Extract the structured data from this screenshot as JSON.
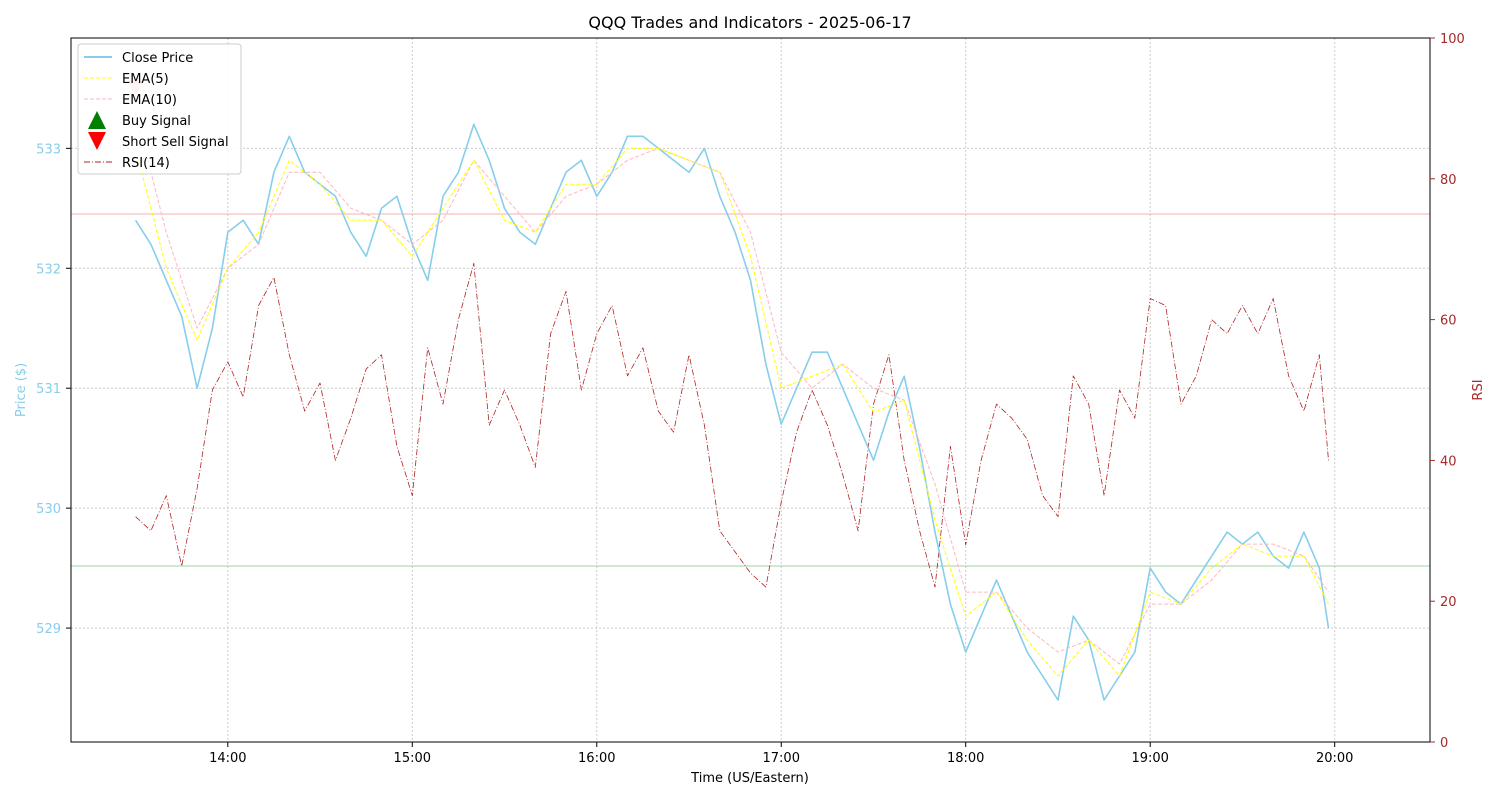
{
  "chart_data": {
    "type": "line",
    "title": "QQQ Trades and Indicators - 2025-06-17",
    "xlabel": "Time (US/Eastern)",
    "ylabel": "Price ($)",
    "y2label": "RSI",
    "x_tick_labels": [
      "14:00",
      "15:00",
      "16:00",
      "17:00",
      "18:00",
      "19:00",
      "20:00"
    ],
    "y_ticks": [
      529,
      530,
      531,
      532,
      533
    ],
    "y2_ticks": [
      0,
      20,
      40,
      60,
      80,
      100
    ],
    "xlim": [
      "13:09",
      "20:31"
    ],
    "ylim": [
      528.05,
      533.92
    ],
    "y2lim": [
      0,
      100
    ],
    "grid": true,
    "legend_position": "top-left",
    "reference_lines": [
      {
        "axis": "rsi",
        "value": 75,
        "color": "#f08080"
      },
      {
        "axis": "rsi",
        "value": 25,
        "color": "#5cb85c"
      }
    ],
    "colors": {
      "close": "#87ceeb",
      "ema5": "#ffff00",
      "ema10": "#ffb6c1",
      "rsi": "#b22222",
      "buy": "#008000",
      "short": "#ff0000",
      "price_axis": "#87ceeb",
      "rsi_axis": "#a52a2a"
    },
    "legend": [
      {
        "label": "Close Price",
        "kind": "line",
        "key": "close"
      },
      {
        "label": "EMA(5)",
        "kind": "dashed",
        "key": "ema5"
      },
      {
        "label": "EMA(10)",
        "kind": "dashed",
        "key": "ema10"
      },
      {
        "label": "Buy Signal",
        "kind": "up",
        "key": "buy"
      },
      {
        "label": "Short Sell Signal",
        "kind": "down",
        "key": "short"
      },
      {
        "label": "RSI(14)",
        "kind": "dashdot",
        "key": "rsi"
      }
    ],
    "signals": [
      {
        "type": "short",
        "x": "13:30",
        "y": 533.5
      }
    ],
    "series": [
      {
        "name": "Close Price",
        "x": [
          "13:30",
          "13:35",
          "13:40",
          "13:45",
          "13:50",
          "13:55",
          "14:00",
          "14:05",
          "14:10",
          "14:15",
          "14:20",
          "14:25",
          "14:30",
          "14:35",
          "14:40",
          "14:45",
          "14:50",
          "14:55",
          "15:00",
          "15:05",
          "15:10",
          "15:15",
          "15:20",
          "15:25",
          "15:30",
          "15:35",
          "15:40",
          "15:45",
          "15:50",
          "15:55",
          "16:00",
          "16:05",
          "16:10",
          "16:15",
          "16:20",
          "16:25",
          "16:30",
          "16:35",
          "16:40",
          "16:45",
          "16:50",
          "16:55",
          "17:00",
          "17:05",
          "17:10",
          "17:15",
          "17:20",
          "17:25",
          "17:30",
          "17:35",
          "17:40",
          "17:45",
          "17:50",
          "17:55",
          "18:00",
          "18:05",
          "18:10",
          "18:15",
          "18:20",
          "18:25",
          "18:30",
          "18:35",
          "18:40",
          "18:45",
          "18:50",
          "18:55",
          "19:00",
          "19:05",
          "19:10",
          "19:15",
          "19:20",
          "19:25",
          "19:30",
          "19:35",
          "19:40",
          "19:45",
          "19:50",
          "19:55",
          "19:58"
        ],
        "values": [
          532.4,
          532.2,
          531.9,
          531.6,
          531.0,
          531.5,
          532.3,
          532.4,
          532.2,
          532.8,
          533.1,
          532.8,
          532.7,
          532.6,
          532.3,
          532.1,
          532.5,
          532.6,
          532.2,
          531.9,
          532.6,
          532.8,
          533.2,
          532.9,
          532.5,
          532.3,
          532.2,
          532.5,
          532.8,
          532.9,
          532.6,
          532.8,
          533.1,
          533.1,
          533.0,
          532.9,
          532.8,
          533.0,
          532.6,
          532.3,
          531.9,
          531.2,
          530.7,
          531.0,
          531.3,
          531.3,
          531.0,
          530.7,
          530.4,
          530.8,
          531.1,
          530.5,
          529.8,
          529.2,
          528.8,
          529.1,
          529.4,
          529.1,
          528.8,
          528.6,
          528.4,
          529.1,
          528.9,
          528.4,
          528.6,
          528.8,
          529.5,
          529.3,
          529.2,
          529.4,
          529.6,
          529.8,
          529.7,
          529.8,
          529.6,
          529.5,
          529.8,
          529.5,
          529.0
        ]
      },
      {
        "name": "EMA(5)",
        "x": [
          "13:30",
          "13:40",
          "13:50",
          "14:00",
          "14:10",
          "14:20",
          "14:30",
          "14:40",
          "14:50",
          "15:00",
          "15:10",
          "15:20",
          "15:30",
          "15:40",
          "15:50",
          "16:00",
          "16:10",
          "16:20",
          "16:30",
          "16:40",
          "16:50",
          "17:00",
          "17:10",
          "17:20",
          "17:30",
          "17:40",
          "17:50",
          "18:00",
          "18:10",
          "18:20",
          "18:30",
          "18:40",
          "18:50",
          "19:00",
          "19:10",
          "19:20",
          "19:30",
          "19:40",
          "19:50",
          "19:58"
        ],
        "values": [
          533.0,
          532.0,
          531.4,
          532.0,
          532.3,
          532.9,
          532.7,
          532.4,
          532.4,
          532.1,
          532.5,
          532.9,
          532.4,
          532.3,
          532.7,
          532.7,
          533.0,
          533.0,
          532.9,
          532.8,
          532.1,
          531.0,
          531.1,
          531.2,
          530.8,
          530.9,
          529.9,
          529.1,
          529.3,
          528.9,
          528.6,
          528.9,
          528.6,
          529.3,
          529.2,
          529.5,
          529.7,
          529.6,
          529.6,
          529.2
        ]
      },
      {
        "name": "EMA(10)",
        "x": [
          "13:30",
          "13:40",
          "13:50",
          "14:00",
          "14:10",
          "14:20",
          "14:30",
          "14:40",
          "14:50",
          "15:00",
          "15:10",
          "15:20",
          "15:30",
          "15:40",
          "15:50",
          "16:00",
          "16:10",
          "16:20",
          "16:30",
          "16:40",
          "16:50",
          "17:00",
          "17:10",
          "17:20",
          "17:30",
          "17:40",
          "17:50",
          "18:00",
          "18:10",
          "18:20",
          "18:30",
          "18:40",
          "18:50",
          "19:00",
          "19:10",
          "19:20",
          "19:30",
          "19:40",
          "19:50",
          "19:58"
        ],
        "values": [
          533.3,
          532.3,
          531.5,
          532.0,
          532.2,
          532.8,
          532.8,
          532.5,
          532.4,
          532.2,
          532.4,
          532.9,
          532.6,
          532.3,
          532.6,
          532.7,
          532.9,
          533.0,
          532.9,
          532.8,
          532.3,
          531.3,
          531.0,
          531.2,
          531.0,
          530.9,
          530.2,
          529.3,
          529.3,
          529.0,
          528.8,
          528.9,
          528.7,
          529.2,
          529.2,
          529.4,
          529.7,
          529.7,
          529.6,
          529.3
        ]
      },
      {
        "name": "RSI(14)",
        "x": [
          "13:30",
          "13:35",
          "13:40",
          "13:45",
          "13:50",
          "13:55",
          "14:00",
          "14:05",
          "14:10",
          "14:15",
          "14:20",
          "14:25",
          "14:30",
          "14:35",
          "14:40",
          "14:45",
          "14:50",
          "14:55",
          "15:00",
          "15:05",
          "15:10",
          "15:15",
          "15:20",
          "15:25",
          "15:30",
          "15:35",
          "15:40",
          "15:45",
          "15:50",
          "15:55",
          "16:00",
          "16:05",
          "16:10",
          "16:15",
          "16:20",
          "16:25",
          "16:30",
          "16:35",
          "16:40",
          "16:45",
          "16:50",
          "16:55",
          "17:00",
          "17:05",
          "17:10",
          "17:15",
          "17:20",
          "17:25",
          "17:30",
          "17:35",
          "17:40",
          "17:45",
          "17:50",
          "17:55",
          "18:00",
          "18:05",
          "18:10",
          "18:15",
          "18:20",
          "18:25",
          "18:30",
          "18:35",
          "18:40",
          "18:45",
          "18:50",
          "18:55",
          "19:00",
          "19:05",
          "19:10",
          "19:15",
          "19:20",
          "19:25",
          "19:30",
          "19:35",
          "19:40",
          "19:45",
          "19:50",
          "19:55",
          "19:58"
        ],
        "values": [
          32,
          30,
          35,
          25,
          36,
          50,
          54,
          49,
          62,
          66,
          55,
          47,
          51,
          40,
          46,
          53,
          55,
          42,
          35,
          56,
          48,
          60,
          68,
          45,
          50,
          45,
          39,
          58,
          64,
          50,
          58,
          62,
          52,
          56,
          47,
          44,
          55,
          45,
          30,
          27,
          24,
          22,
          34,
          44,
          50,
          45,
          38,
          30,
          48,
          55,
          40,
          30,
          22,
          42,
          28,
          40,
          48,
          46,
          43,
          35,
          32,
          52,
          48,
          35,
          50,
          46,
          63,
          62,
          48,
          52,
          60,
          58,
          62,
          58,
          63,
          52,
          47,
          55,
          40
        ]
      }
    ]
  }
}
